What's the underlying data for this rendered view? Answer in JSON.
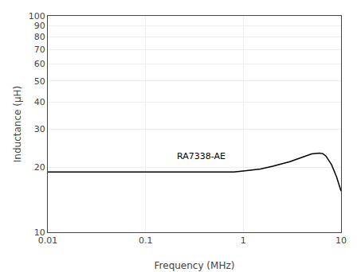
{
  "chart_data": {
    "type": "line",
    "xlabel": "Frequency (MHz)",
    "ylabel": "Inductance (μH)",
    "x": [
      0.01,
      0.02,
      0.03,
      0.05,
      0.07,
      0.1,
      0.15,
      0.2,
      0.3,
      0.5,
      0.65,
      0.8,
      1.0,
      1.5,
      2.0,
      3.0,
      4.0,
      5.0,
      6.0,
      6.5,
      7.0,
      8.0,
      9.0,
      10.0
    ],
    "values": [
      19.0,
      19.0,
      19.0,
      19.0,
      19.0,
      19.0,
      19.0,
      19.0,
      19.0,
      19.0,
      18.9,
      19.0,
      19.2,
      19.6,
      20.2,
      21.2,
      22.2,
      23.0,
      23.2,
      23.1,
      22.5,
      20.5,
      18.0,
      15.5
    ],
    "color": "#000000",
    "xlim": [
      0.01,
      10
    ],
    "ylim": [
      10,
      100
    ],
    "xticks": [
      0.01,
      0.1,
      1,
      10
    ],
    "yticks": [
      10,
      20,
      30,
      40,
      50,
      60,
      70,
      80,
      90,
      100
    ],
    "log": true,
    "grid": true,
    "annotations": [
      {
        "text": "RA7338-AE",
        "x": 0.2,
        "y": 20.8,
        "color": "#000000"
      }
    ]
  }
}
